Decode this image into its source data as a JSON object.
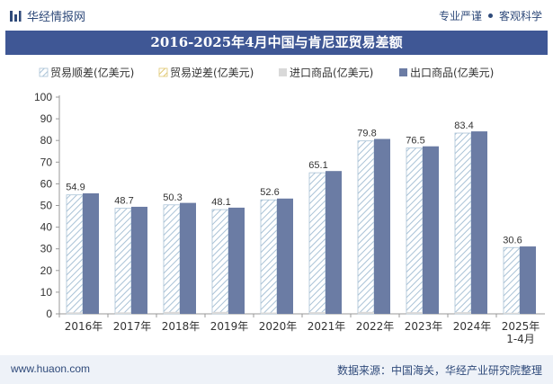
{
  "header": {
    "brand": "华经情报网",
    "tagline_left": "专业严谨",
    "tagline_right": "客观科学"
  },
  "colors": {
    "title_bg": "#3f5795",
    "export_bar": "#6b7ca4",
    "surplus_hatch": "#a9c2d6",
    "axis_text": "#333333",
    "footer_bg": "#eef2f8"
  },
  "footer": {
    "site": "www.huaon.com",
    "source": "数据来源：中国海关，华经产业研究院整理"
  },
  "chart_data": {
    "type": "bar",
    "title": "2016-2025年4月中国与肯尼亚贸易差额",
    "categories": [
      "2016年",
      "2017年",
      "2018年",
      "2019年",
      "2020年",
      "2021年",
      "2022年",
      "2023年",
      "2024年",
      "2025年\n1-4月"
    ],
    "series": [
      {
        "name": "贸易顺差(亿美元)",
        "style": "hatched",
        "color": "#a9c2d6",
        "values": [
          54.9,
          48.7,
          50.3,
          48.1,
          52.6,
          65.1,
          79.8,
          76.5,
          83.4,
          30.6
        ]
      },
      {
        "name": "贸易逆差(亿美元)",
        "style": "hatched",
        "color": "#e0c873",
        "values": [
          0,
          0,
          0,
          0,
          0,
          0,
          0,
          0,
          0,
          0
        ]
      },
      {
        "name": "进口商品(亿美元)",
        "style": "solid",
        "color": "#d9d9d9",
        "values": [
          0.7,
          0.7,
          0.9,
          0.9,
          0.6,
          0.8,
          0.9,
          0.8,
          0.8,
          0.5
        ]
      },
      {
        "name": "出口商品(亿美元)",
        "style": "solid",
        "color": "#6b7ca4",
        "values": [
          55.6,
          49.4,
          51.2,
          49.0,
          53.2,
          65.9,
          80.7,
          77.3,
          84.2,
          31.1
        ]
      }
    ],
    "data_labels": [
      "54.9",
      "48.7",
      "50.3",
      "48.1",
      "52.6",
      "65.1",
      "79.8",
      "76.5",
      "83.4",
      "30.6"
    ],
    "ylim": [
      0,
      100
    ],
    "yticks": [
      0,
      10,
      20,
      30,
      40,
      50,
      60,
      70,
      80,
      90,
      100
    ],
    "grid": false,
    "legend_position": "top"
  }
}
